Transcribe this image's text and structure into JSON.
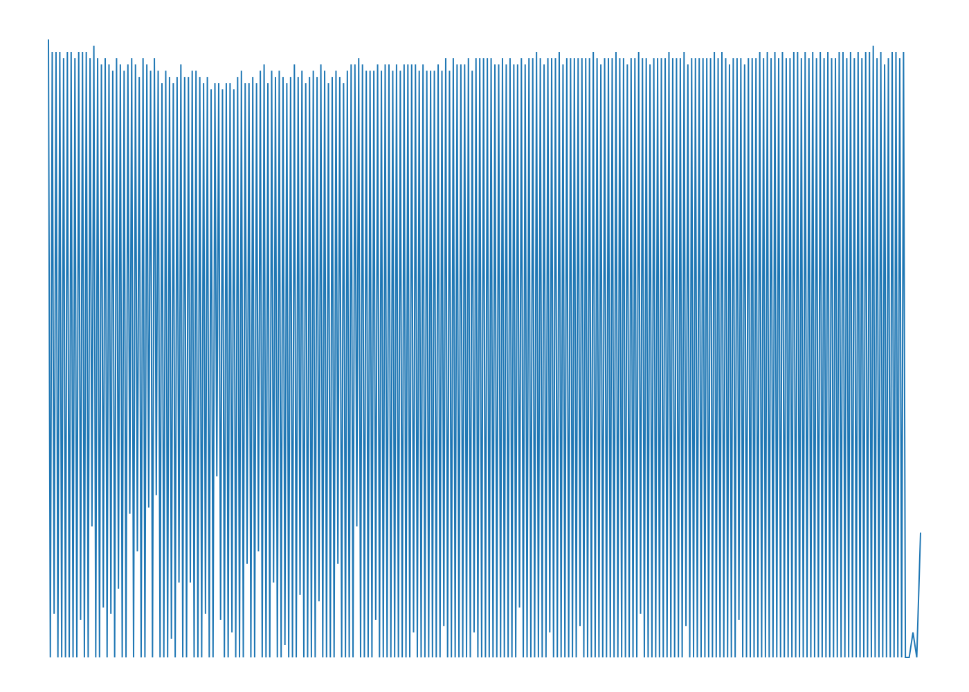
{
  "chart_data": {
    "type": "line",
    "title": "",
    "xlabel": "",
    "ylabel": "",
    "axes_visible": false,
    "grid": false,
    "legend": "none",
    "ylim": [
      0,
      1
    ],
    "series": [
      {
        "color": "#1f77b4",
        "peaks": [
          0.99,
          0.97,
          0.97,
          0.97,
          0.96,
          0.97,
          0.97,
          0.96,
          0.97,
          0.97,
          0.97,
          0.96,
          0.98,
          0.96,
          0.95,
          0.96,
          0.95,
          0.94,
          0.96,
          0.95,
          0.94,
          0.95,
          0.96,
          0.95,
          0.93,
          0.96,
          0.95,
          0.94,
          0.96,
          0.94,
          0.92,
          0.94,
          0.93,
          0.92,
          0.93,
          0.95,
          0.93,
          0.93,
          0.94,
          0.94,
          0.93,
          0.92,
          0.93,
          0.91,
          0.92,
          0.92,
          0.91,
          0.92,
          0.92,
          0.91,
          0.93,
          0.94,
          0.92,
          0.92,
          0.93,
          0.92,
          0.94,
          0.95,
          0.92,
          0.94,
          0.93,
          0.94,
          0.93,
          0.92,
          0.93,
          0.95,
          0.93,
          0.94,
          0.92,
          0.93,
          0.94,
          0.93,
          0.95,
          0.94,
          0.92,
          0.93,
          0.94,
          0.93,
          0.92,
          0.94,
          0.95,
          0.95,
          0.96,
          0.95,
          0.94,
          0.94,
          0.94,
          0.95,
          0.94,
          0.95,
          0.95,
          0.94,
          0.95,
          0.94,
          0.95,
          0.95,
          0.95,
          0.95,
          0.94,
          0.95,
          0.94,
          0.94,
          0.94,
          0.95,
          0.94,
          0.96,
          0.94,
          0.96,
          0.95,
          0.95,
          0.95,
          0.96,
          0.94,
          0.96,
          0.96,
          0.96,
          0.96,
          0.96,
          0.95,
          0.95,
          0.96,
          0.95,
          0.96,
          0.95,
          0.95,
          0.96,
          0.95,
          0.96,
          0.96,
          0.97,
          0.96,
          0.95,
          0.96,
          0.96,
          0.96,
          0.97,
          0.95,
          0.96,
          0.96,
          0.96,
          0.96,
          0.96,
          0.96,
          0.96,
          0.97,
          0.96,
          0.95,
          0.96,
          0.96,
          0.96,
          0.97,
          0.96,
          0.96,
          0.95,
          0.96,
          0.96,
          0.97,
          0.96,
          0.96,
          0.95,
          0.96,
          0.96,
          0.96,
          0.96,
          0.97,
          0.96,
          0.96,
          0.96,
          0.97,
          0.95,
          0.96,
          0.96,
          0.96,
          0.96,
          0.96,
          0.96,
          0.97,
          0.96,
          0.97,
          0.96,
          0.95,
          0.96,
          0.96,
          0.96,
          0.95,
          0.96,
          0.96,
          0.96,
          0.97,
          0.96,
          0.97,
          0.96,
          0.97,
          0.96,
          0.97,
          0.96,
          0.96,
          0.97,
          0.97,
          0.96,
          0.97,
          0.96,
          0.97,
          0.96,
          0.97,
          0.96,
          0.97,
          0.96,
          0.96,
          0.97,
          0.97,
          0.96,
          0.97,
          0.96,
          0.97,
          0.96,
          0.97,
          0.97,
          0.98,
          0.96,
          0.97,
          0.95,
          0.96,
          0.97,
          0.97,
          0.96,
          0.97
        ],
        "troughs": [
          0.0,
          0.07,
          0.0,
          0.0,
          0.0,
          0.0,
          0.0,
          0.0,
          0.06,
          0.0,
          0.0,
          0.21,
          0.0,
          0.0,
          0.08,
          0.0,
          0.07,
          0.0,
          0.11,
          0.0,
          0.0,
          0.23,
          0.0,
          0.17,
          0.0,
          0.0,
          0.24,
          0.0,
          0.26,
          0.0,
          0.0,
          0.0,
          0.03,
          0.0,
          0.12,
          0.0,
          0.0,
          0.12,
          0.0,
          0.0,
          0.0,
          0.07,
          0.0,
          0.0,
          0.29,
          0.06,
          0.0,
          0.0,
          0.04,
          0.0,
          0.0,
          0.0,
          0.15,
          0.0,
          0.0,
          0.17,
          0.0,
          0.0,
          0.0,
          0.12,
          0.0,
          0.0,
          0.02,
          0.0,
          0.0,
          0.0,
          0.1,
          0.0,
          0.0,
          0.0,
          0.0,
          0.09,
          0.0,
          0.0,
          0.0,
          0.0,
          0.15,
          0.0,
          0.0,
          0.0,
          0.0,
          0.21,
          0.0,
          0.0,
          0.0,
          0.0,
          0.06,
          0.0,
          0.0,
          0.0,
          0.0,
          0.0,
          0.0,
          0.0,
          0.0,
          0.0,
          0.04,
          0.0,
          0.0,
          0.0,
          0.0,
          0.0,
          0.0,
          0.0,
          0.05,
          0.0,
          0.0,
          0.0,
          0.0,
          0.0,
          0.0,
          0.0,
          0.04,
          0.0,
          0.0,
          0.0,
          0.0,
          0.0,
          0.0,
          0.0,
          0.0,
          0.0,
          0.0,
          0.0,
          0.08,
          0.0,
          0.0,
          0.0,
          0.0,
          0.0,
          0.0,
          0.0,
          0.04,
          0.0,
          0.0,
          0.0,
          0.0,
          0.0,
          0.0,
          0.0,
          0.05,
          0.0,
          0.0,
          0.0,
          0.0,
          0.0,
          0.0,
          0.0,
          0.0,
          0.0,
          0.0,
          0.0,
          0.0,
          0.0,
          0.0,
          0.0,
          0.07,
          0.0,
          0.0,
          0.0,
          0.0,
          0.0,
          0.0,
          0.0,
          0.0,
          0.0,
          0.0,
          0.0,
          0.05,
          0.0,
          0.0,
          0.0,
          0.0,
          0.0,
          0.0,
          0.0,
          0.0,
          0.0,
          0.0,
          0.0,
          0.0,
          0.0,
          0.06,
          0.0,
          0.0,
          0.0,
          0.0,
          0.0,
          0.0,
          0.0,
          0.0,
          0.0,
          0.0,
          0.0,
          0.0,
          0.0,
          0.0,
          0.0,
          0.0,
          0.0,
          0.0,
          0.0,
          0.0,
          0.0,
          0.0,
          0.0,
          0.0,
          0.0,
          0.0,
          0.0,
          0.0,
          0.0,
          0.0,
          0.0,
          0.0,
          0.0,
          0.0,
          0.0,
          0.0,
          0.0,
          0.0,
          0.0,
          0.0,
          0.0,
          0.0,
          0.0,
          0.0,
          0.0,
          0.04,
          0.0,
          0.2
        ]
      }
    ]
  }
}
